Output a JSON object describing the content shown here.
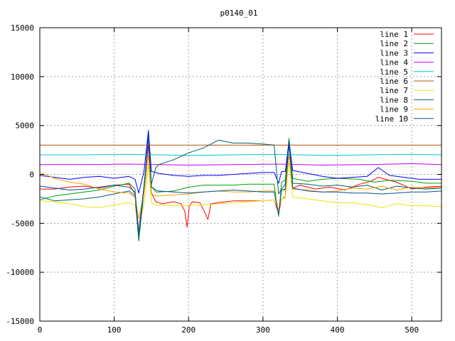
{
  "chart_data": {
    "type": "line",
    "title": "p0140_01",
    "xlabel": "",
    "ylabel": "",
    "xlim": [
      0,
      540
    ],
    "ylim": [
      -15000,
      15000
    ],
    "xticks": [
      0,
      100,
      200,
      300,
      400,
      500
    ],
    "yticks": [
      -15000,
      -10000,
      -5000,
      0,
      5000,
      10000,
      15000
    ],
    "xtick_labels": [
      "0",
      "100",
      "200",
      "300",
      "400",
      "500"
    ],
    "ytick_labels": [
      "-15000",
      "-10000",
      "-5000",
      "0",
      "5000",
      "10000",
      "15000"
    ],
    "grid": true,
    "legend_position": "top-right",
    "series": [
      {
        "name": "line 1",
        "color": "#ff0000",
        "x": [
          0,
          20,
          40,
          60,
          80,
          100,
          120,
          128,
          133,
          140,
          146,
          150,
          156,
          165,
          180,
          190,
          195,
          198,
          201,
          205,
          215,
          220,
          226,
          230,
          240,
          260,
          280,
          300,
          315,
          321,
          325,
          330,
          335,
          340,
          350,
          370,
          390,
          410,
          430,
          445,
          455,
          465,
          480,
          500,
          520,
          540
        ],
        "y": [
          -1500,
          -1500,
          -1300,
          -1200,
          -1400,
          -1100,
          -1000,
          -2000,
          -5700,
          -1300,
          3000,
          -1900,
          -2800,
          -3000,
          -2800,
          -3000,
          -3800,
          -5400,
          -3200,
          -2800,
          -2900,
          -3600,
          -4600,
          -3000,
          -2900,
          -2700,
          -2700,
          -2700,
          -2600,
          -4000,
          -2500,
          -2300,
          3500,
          -1400,
          -1100,
          -1500,
          -1300,
          -1600,
          -1000,
          -700,
          -300,
          -500,
          -800,
          -1500,
          -1300,
          -1200
        ]
      },
      {
        "name": "line 2",
        "color": "#00a000",
        "x": [
          0,
          20,
          40,
          60,
          80,
          100,
          120,
          128,
          133,
          140,
          146,
          150,
          156,
          160,
          180,
          200,
          220,
          240,
          260,
          280,
          300,
          315,
          321,
          325,
          330,
          335,
          340,
          360,
          380,
          400,
          430,
          450,
          470,
          500,
          520,
          540
        ],
        "y": [
          -2600,
          -2200,
          -2000,
          -1800,
          -1600,
          -1200,
          -900,
          -1500,
          -6500,
          -1800,
          4200,
          -1200,
          -1800,
          -1800,
          -1700,
          -1300,
          -1100,
          -1100,
          -1100,
          -1000,
          -1000,
          -1000,
          -4300,
          -800,
          -600,
          3700,
          -400,
          -700,
          -500,
          -400,
          -500,
          -800,
          -600,
          -700,
          -900,
          -900
        ]
      },
      {
        "name": "line 3",
        "color": "#0000ff",
        "x": [
          0,
          20,
          40,
          60,
          80,
          100,
          120,
          128,
          133,
          140,
          146,
          150,
          156,
          160,
          180,
          200,
          220,
          240,
          260,
          280,
          300,
          315,
          321,
          325,
          330,
          335,
          340,
          360,
          380,
          400,
          420,
          440,
          455,
          470,
          490,
          510,
          540
        ],
        "y": [
          -100,
          -300,
          -500,
          -300,
          -200,
          -400,
          -200,
          -500,
          -1900,
          300,
          4500,
          300,
          200,
          100,
          -100,
          -200,
          -100,
          -100,
          0,
          100,
          200,
          200,
          -900,
          300,
          300,
          3400,
          400,
          100,
          -200,
          -400,
          -300,
          -200,
          700,
          -100,
          -300,
          -500,
          -500
        ]
      },
      {
        "name": "line 4",
        "color": "#c000ff",
        "x": [
          0,
          60,
          120,
          200,
          260,
          320,
          380,
          440,
          500,
          540
        ],
        "y": [
          1000,
          1000,
          1050,
          950,
          1000,
          1050,
          950,
          1000,
          1100,
          1000
        ]
      },
      {
        "name": "line 5",
        "color": "#00c8d2",
        "x": [
          0,
          60,
          120,
          200,
          260,
          320,
          380,
          440,
          500,
          540
        ],
        "y": [
          2000,
          2000,
          2050,
          1950,
          2000,
          2050,
          1950,
          2000,
          2050,
          2000
        ]
      },
      {
        "name": "line 6",
        "color": "#b25400",
        "x": [
          0,
          100,
          200,
          300,
          400,
          500,
          540
        ],
        "y": [
          3000,
          3000,
          3000,
          3000,
          3000,
          3000,
          3000
        ]
      },
      {
        "name": "line 7",
        "color": "#e8e800",
        "x": [
          0,
          20,
          40,
          60,
          80,
          100,
          120,
          128,
          133,
          140,
          146,
          150,
          156,
          160,
          180,
          200,
          220,
          240,
          260,
          280,
          300,
          315,
          321,
          325,
          330,
          335,
          340,
          360,
          380,
          400,
          420,
          440,
          460,
          480,
          500,
          520,
          540
        ],
        "y": [
          -2700,
          -2800,
          -3000,
          -3300,
          -3400,
          -3100,
          -2900,
          -3100,
          -5500,
          -3000,
          1000,
          -2900,
          -3100,
          -3100,
          -3200,
          -3200,
          -3100,
          -3000,
          -2900,
          -2800,
          -2700,
          -2600,
          -3600,
          -2500,
          -2400,
          1200,
          -2300,
          -2500,
          -2700,
          -2900,
          -2900,
          -3100,
          -3400,
          -3000,
          -3200,
          -3200,
          -3300
        ]
      },
      {
        "name": "line 8",
        "color": "#006060",
        "x": [
          0,
          20,
          40,
          60,
          80,
          100,
          120,
          128,
          133,
          140,
          146,
          150,
          156,
          160,
          180,
          200,
          220,
          240,
          260,
          280,
          300,
          315,
          321,
          325,
          330,
          335,
          340,
          360,
          380,
          400,
          420,
          440,
          460,
          480,
          500,
          520,
          540
        ],
        "y": [
          -2300,
          -2700,
          -2600,
          -2500,
          -2300,
          -2000,
          -1700,
          -2200,
          -6800,
          -1500,
          3800,
          -1000,
          700,
          1000,
          1500,
          2200,
          2700,
          3500,
          3200,
          3200,
          3100,
          3000,
          -2000,
          -1500,
          -1000,
          3000,
          -900,
          -1000,
          -1200,
          -1100,
          -1300,
          -1100,
          -1600,
          -1200,
          -1400,
          -1500,
          -1400
        ]
      },
      {
        "name": "line 9",
        "color": "#ffa000",
        "x": [
          0,
          20,
          40,
          60,
          80,
          100,
          120,
          128,
          133,
          140,
          146,
          150,
          156,
          160,
          180,
          200,
          220,
          240,
          260,
          280,
          300,
          315,
          321,
          325,
          330,
          335,
          340,
          360,
          380,
          400,
          420,
          440,
          460,
          480,
          500,
          520,
          540
        ],
        "y": [
          200,
          -400,
          -800,
          -1000,
          -1500,
          -1800,
          -1900,
          -2400,
          -4500,
          -2000,
          2000,
          -2000,
          -2200,
          -2200,
          -2100,
          -2000,
          -1800,
          -1700,
          -1800,
          -1800,
          -1700,
          -1700,
          -3800,
          -1600,
          -1600,
          2000,
          -1500,
          -1600,
          -1800,
          -1700,
          -1400,
          -1500,
          -1200,
          -1600,
          -1300,
          -1400,
          -1300
        ]
      },
      {
        "name": "line 10",
        "color": "#0050a0",
        "x": [
          0,
          20,
          40,
          60,
          80,
          100,
          120,
          128,
          133,
          140,
          146,
          150,
          156,
          160,
          180,
          200,
          220,
          240,
          260,
          280,
          300,
          315,
          321,
          325,
          330,
          335,
          340,
          360,
          380,
          400,
          420,
          440,
          460,
          480,
          500,
          520,
          540
        ],
        "y": [
          -1200,
          -1400,
          -1600,
          -1500,
          -1300,
          -1100,
          -1300,
          -1800,
          -6000,
          -1200,
          3900,
          -1300,
          -1600,
          -1700,
          -1800,
          -1900,
          -1800,
          -1700,
          -1600,
          -1700,
          -1800,
          -1800,
          -4100,
          -1600,
          -1500,
          3300,
          -1400,
          -1700,
          -1800,
          -1800,
          -1900,
          -1900,
          -2000,
          -1900,
          -1800,
          -1800,
          -1700
        ]
      }
    ]
  }
}
